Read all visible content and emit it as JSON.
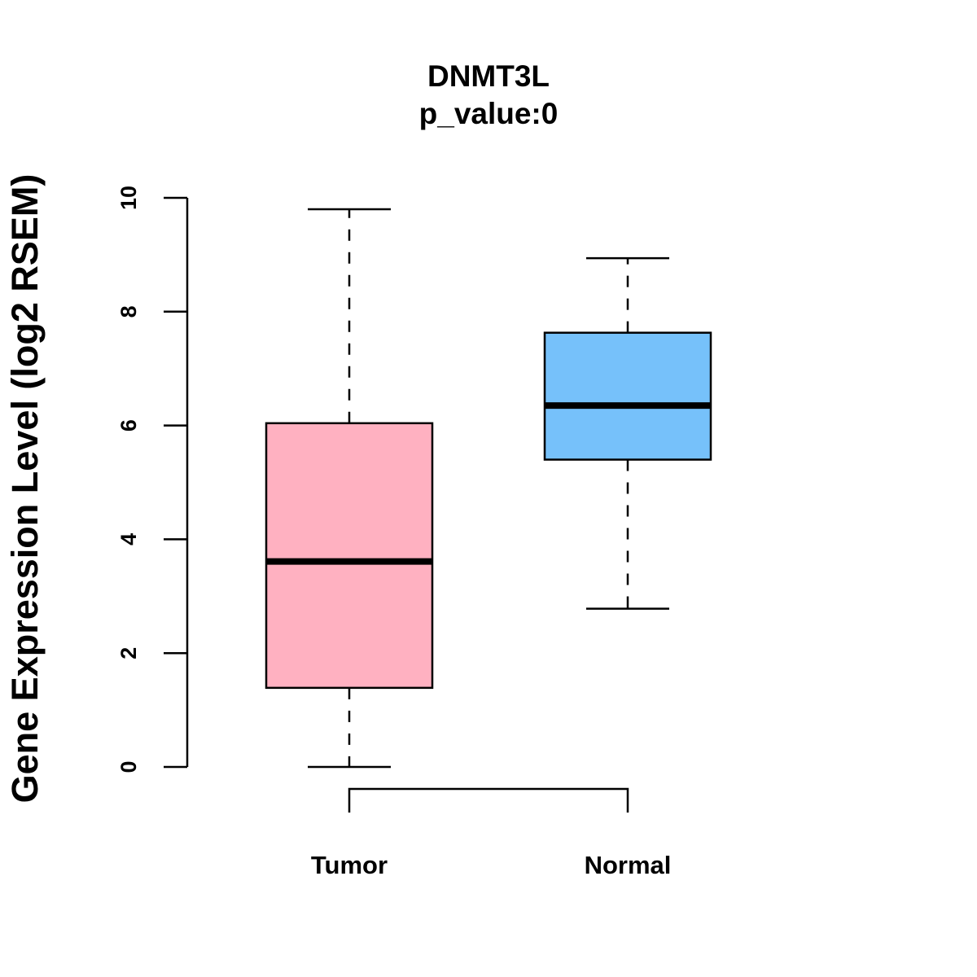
{
  "chart_data": {
    "type": "box",
    "title": "DNMT3L",
    "subtitle": "p_value:0",
    "xlabel": "",
    "ylabel": "Gene Expression Level (log2 RSEM)",
    "ylim": [
      0,
      10
    ],
    "yticks": [
      0,
      2,
      4,
      6,
      8,
      10
    ],
    "categories": [
      "Tumor",
      "Normal"
    ],
    "boxes": [
      {
        "name": "Tumor",
        "min": 0.0,
        "q1": 1.39,
        "median": 3.61,
        "q3": 6.04,
        "max": 9.8,
        "color": "#FFB1C1"
      },
      {
        "name": "Normal",
        "min": 2.78,
        "q1": 5.4,
        "median": 6.35,
        "q3": 7.63,
        "max": 8.94,
        "color": "#76C1FA"
      }
    ],
    "grid": false,
    "legend": "none",
    "comparison_bracket": [
      "Tumor",
      "Normal"
    ]
  }
}
